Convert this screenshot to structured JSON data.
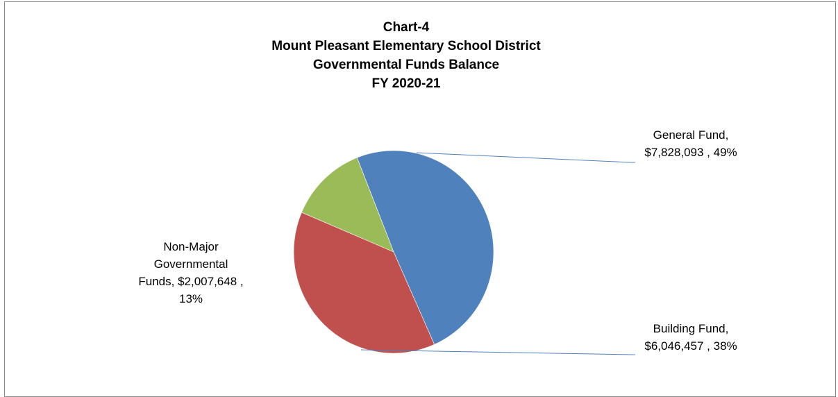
{
  "chart_data": {
    "type": "pie",
    "title_lines": [
      "Chart-4",
      "Mount Pleasant Elementary School District",
      "Governmental Funds Balance",
      "FY 2020-21"
    ],
    "slices": [
      {
        "name": "General Fund",
        "value": 7828093,
        "value_text": "$7,828,093",
        "percent": 49,
        "percent_text": "49%",
        "color": "#4F81BD",
        "label_lines": [
          "General Fund,",
          "$7,828,093 , 49%"
        ]
      },
      {
        "name": "Building Fund",
        "value": 6046457,
        "value_text": "$6,046,457",
        "percent": 38,
        "percent_text": "38%",
        "color": "#C0504D",
        "label_lines": [
          "Building Fund,",
          "$6,046,457 , 38%"
        ]
      },
      {
        "name": "Non-Major Governmental Funds",
        "value": 2007648,
        "value_text": "$2,007,648",
        "percent": 13,
        "percent_text": "13%",
        "color": "#9BBB59",
        "label_lines": [
          "Non-Major",
          "Governmental",
          "Funds,  $2,007,648 ,",
          "13%"
        ]
      }
    ],
    "legend": "none",
    "leader_line_color": "#4F81BD"
  }
}
